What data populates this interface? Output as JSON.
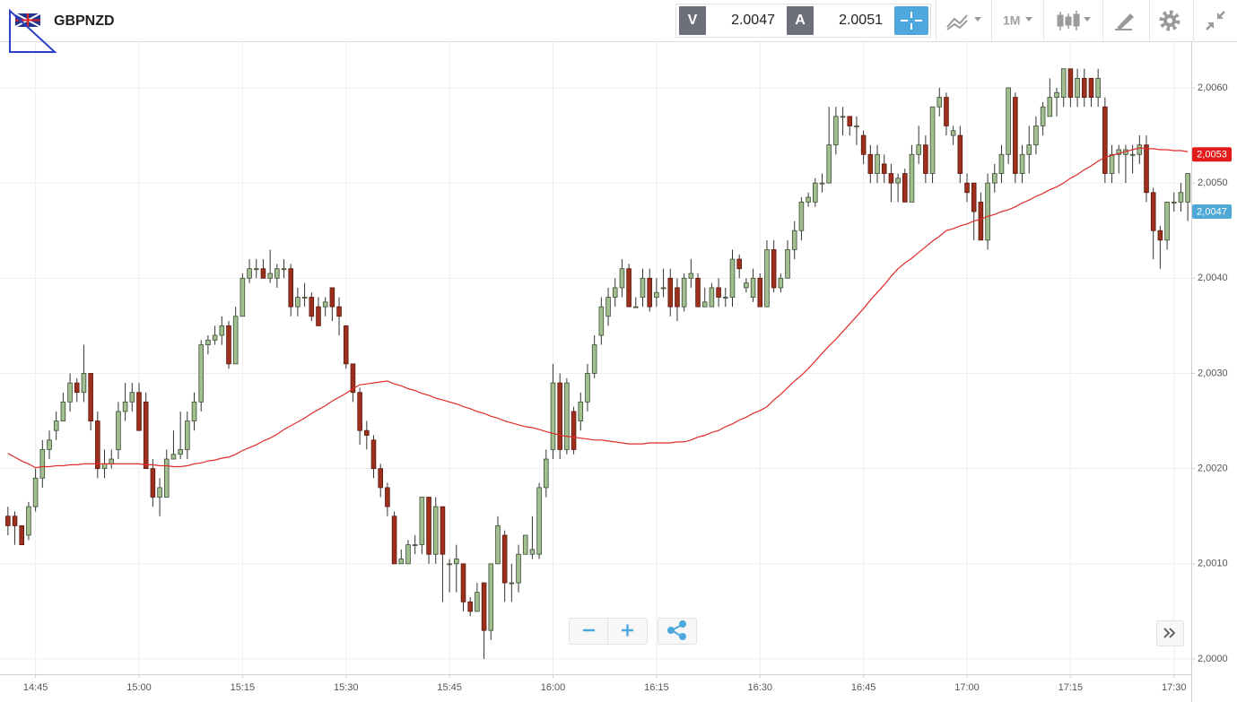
{
  "header": {
    "symbol": "GBPNZD",
    "bid_label": "V",
    "bid": "2.0047",
    "ask_label": "A",
    "ask": "2.0051",
    "timeframe": "1M"
  },
  "chart_data": {
    "type": "candlestick",
    "categories": [
      null,
      null,
      null,
      null,
      "14:45",
      null,
      null,
      null,
      null,
      null,
      null,
      null,
      null,
      null,
      null,
      null,
      null,
      null,
      null,
      "15:00",
      null,
      null,
      null,
      null,
      null,
      null,
      null,
      null,
      null,
      null,
      null,
      null,
      null,
      null,
      "15:15",
      null,
      null,
      null,
      null,
      null,
      null,
      null,
      null,
      null,
      null,
      null,
      null,
      null,
      null,
      "15:30",
      null,
      null,
      null,
      null,
      null,
      null,
      null,
      null,
      null,
      null,
      null,
      null,
      null,
      null,
      "15:45",
      null,
      null,
      null,
      null,
      null,
      null,
      null,
      null,
      null,
      null,
      null,
      null,
      null,
      null,
      "16:00",
      null,
      null,
      null,
      null,
      null,
      null,
      null,
      null,
      null,
      null,
      null,
      null,
      null,
      null,
      "16:15",
      null,
      null,
      null,
      null,
      null,
      null,
      null,
      null,
      null,
      null,
      null,
      null,
      null,
      null,
      "16:30",
      null,
      null,
      null,
      null,
      null,
      null,
      null,
      null,
      null,
      null,
      null,
      null,
      null,
      null,
      "16:45",
      null,
      null,
      null,
      null,
      null,
      null,
      null,
      null,
      null,
      null,
      null,
      null,
      null,
      null,
      "17:00",
      null,
      null,
      null,
      null,
      null,
      null,
      null,
      null,
      null,
      null,
      null,
      null,
      null,
      null,
      "17:15",
      null,
      null,
      null,
      null,
      null,
      null,
      null,
      null,
      null,
      null,
      null,
      null,
      null,
      null,
      "17:30",
      null,
      null
    ],
    "open": [
      2.0015,
      2.0015,
      2.0014,
      2.0013,
      2.0016,
      2.0019,
      2.0022,
      2.0024,
      2.0025,
      2.0027,
      2.0029,
      2.0028,
      2.003,
      2.0025,
      2.002,
      2.00205,
      2.0022,
      2.0026,
      2.0027,
      2.0028,
      2.0027,
      2.002,
      2.0017,
      2.0017,
      2.0021,
      2.00215,
      2.0022,
      2.0025,
      2.0027,
      2.0033,
      2.00335,
      2.0034,
      2.0035,
      2.0031,
      2.0036,
      2.004,
      2.0041,
      2.0041,
      2.004,
      2.004,
      2.0041,
      2.0041,
      2.0037,
      2.0038,
      2.0038,
      2.0037,
      2.0037,
      2.0039,
      2.0037,
      2.0035,
      2.0031,
      2.0028,
      2.0024,
      2.0023,
      2.002,
      2.0018,
      2.0015,
      2.001,
      2.001,
      2.0012,
      2.0012,
      2.0017,
      2.0011,
      2.0016,
      2.001,
      2.001,
      2.001,
      2.0006,
      2.0005,
      2.0008,
      2.0003,
      2.001,
      2.0013,
      2.0008,
      2.0008,
      2.0011,
      2.0011,
      2.0011,
      2.0018,
      2.0022,
      2.0029,
      2.0022,
      2.0026,
      2.0025,
      2.0027,
      2.003,
      2.0034,
      2.0036,
      2.0038,
      2.0039,
      2.0041,
      2.0037,
      2.0038,
      2.004,
      2.0038,
      2.0039,
      2.004,
      2.0039,
      2.0037,
      2.004,
      2.004,
      2.0037,
      2.0037,
      2.0039,
      2.0038,
      2.0038,
      2.0042,
      2.0039,
      2.0038,
      2.004,
      2.0037,
      2.0043,
      2.0039,
      2.004,
      2.0043,
      2.0045,
      2.0048,
      2.0048,
      2.005,
      2.005,
      2.0054,
      2.0057,
      2.0057,
      2.0056,
      2.0055,
      2.0053,
      2.0051,
      2.0052,
      2.0051,
      2.005,
      2.0051,
      2.0048,
      2.0053,
      2.0054,
      2.0051,
      2.0058,
      2.0059,
      2.0055,
      2.0055,
      2.005,
      2.005,
      2.0048,
      2.0044,
      2.005,
      2.0051,
      2.0053,
      2.0059,
      2.0051,
      2.0053,
      2.0054,
      2.0056,
      2.0057,
      2.0059,
      2.0059,
      2.0062,
      2.0059,
      2.0061,
      2.0061,
      2.0059,
      2.0058,
      2.0051,
      2.0053,
      2.0053,
      2.0053,
      2.0053,
      2.0054,
      2.0049,
      2.0045,
      2.0044,
      2.0048,
      2.0048,
      2.0048
    ],
    "high": [
      2.0016,
      2.00155,
      2.0014,
      2.00165,
      2.002,
      2.0023,
      2.0024,
      2.0026,
      2.0028,
      2.003,
      2.00295,
      2.0033,
      2.003,
      2.0026,
      2.0022,
      2.0022,
      2.0027,
      2.0029,
      2.0029,
      2.0029,
      2.0028,
      2.0021,
      2.0019,
      2.0022,
      2.0024,
      2.0026,
      2.0026,
      2.0028,
      2.00335,
      2.0034,
      2.0035,
      2.0036,
      2.00355,
      2.0037,
      2.00405,
      2.0042,
      2.0042,
      2.0042,
      2.0043,
      2.00415,
      2.0042,
      2.00415,
      2.0039,
      2.00395,
      2.00385,
      2.0038,
      2.0038,
      2.0039,
      2.0038,
      2.0035,
      2.0031,
      2.00285,
      2.0025,
      2.00235,
      2.00205,
      2.00185,
      2.00155,
      2.00115,
      2.00125,
      2.0013,
      2.0017,
      2.0017,
      2.0017,
      2.0016,
      2.00105,
      2.0012,
      2.001,
      2.00065,
      2.0008,
      2.0008,
      2.001,
      2.0015,
      2.00135,
      2.001,
      2.0012,
      2.0013,
      2.0015,
      2.00185,
      2.0022,
      2.0031,
      2.003,
      2.00295,
      2.00265,
      2.0028,
      2.0031,
      2.0034,
      2.0038,
      2.0039,
      2.004,
      2.0042,
      2.00415,
      2.0038,
      2.0041,
      2.0041,
      2.004,
      2.0041,
      2.0041,
      2.004,
      2.00405,
      2.0042,
      2.00405,
      2.0039,
      2.00395,
      2.004,
      2.0039,
      2.0043,
      2.00425,
      2.004,
      2.0041,
      2.00405,
      2.0044,
      2.0044,
      2.00405,
      2.0044,
      2.0046,
      2.00485,
      2.0049,
      2.00505,
      2.0051,
      2.0058,
      2.0058,
      2.0058,
      2.0057,
      2.0057,
      2.00555,
      2.0054,
      2.0054,
      2.0053,
      2.0052,
      2.0051,
      2.00515,
      2.0054,
      2.0056,
      2.0055,
      2.0058,
      2.006,
      2.00595,
      2.0056,
      2.0056,
      2.0051,
      2.005,
      2.0049,
      2.0051,
      2.0052,
      2.0054,
      2.006,
      2.00595,
      2.0054,
      2.0056,
      2.0057,
      2.00585,
      2.0061,
      2.006,
      2.0062,
      2.0062,
      2.0062,
      2.0062,
      2.0061,
      2.0062,
      2.0059,
      2.0054,
      2.0054,
      2.0054,
      2.0054,
      2.0055,
      2.0055,
      2.00495,
      2.00455,
      2.0048,
      2.0049,
      2.005,
      2.0051
    ],
    "low": [
      2.0013,
      2.0012,
      2.0012,
      2.00125,
      2.00155,
      2.0018,
      2.0021,
      2.0023,
      2.0025,
      2.0026,
      2.0027,
      2.0027,
      2.0024,
      2.0019,
      2.0019,
      2.002,
      2.0021,
      2.0025,
      2.0026,
      2.0024,
      2.002,
      2.0016,
      2.0015,
      2.0017,
      2.0021,
      2.0021,
      2.0021,
      2.0024,
      2.0026,
      2.0032,
      2.0033,
      2.0033,
      2.00305,
      2.0031,
      2.0036,
      2.00395,
      2.004,
      2.004,
      2.00395,
      2.0039,
      2.004,
      2.0036,
      2.0036,
      2.0037,
      2.00355,
      2.0035,
      2.0036,
      2.00355,
      2.0034,
      2.00305,
      2.0027,
      2.00225,
      2.0022,
      2.0019,
      2.0017,
      2.0015,
      2.001,
      2.001,
      2.001,
      2.0011,
      2.0011,
      2.001,
      2.001,
      2.0006,
      2.0007,
      2.0007,
      2.0005,
      2.00045,
      2.0005,
      2.0,
      2.0002,
      2.001,
      2.0006,
      2.0006,
      2.0007,
      2.0011,
      2.00105,
      2.00105,
      2.0017,
      2.0021,
      2.0021,
      2.00215,
      2.00215,
      2.0024,
      2.0026,
      2.00295,
      2.0033,
      2.0035,
      2.0037,
      2.0038,
      2.0037,
      2.0037,
      2.0037,
      2.00365,
      2.0037,
      2.0038,
      2.0036,
      2.00355,
      2.00365,
      2.0039,
      2.0037,
      2.0037,
      2.0037,
      2.0037,
      2.0037,
      2.0037,
      2.004,
      2.00385,
      2.00375,
      2.0037,
      2.0037,
      2.00385,
      2.00385,
      2.004,
      2.0042,
      2.0044,
      2.00475,
      2.00475,
      2.0049,
      2.005,
      2.0053,
      2.0055,
      2.0055,
      2.0054,
      2.0052,
      2.005,
      2.005,
      2.005,
      2.0048,
      2.0048,
      2.0048,
      2.0048,
      2.0052,
      2.005,
      2.005,
      2.0057,
      2.0055,
      2.0054,
      2.005,
      2.0048,
      2.0044,
      2.0044,
      2.0043,
      2.0049,
      2.005,
      2.0052,
      2.005,
      2.005,
      2.0051,
      2.0053,
      2.0055,
      2.0057,
      2.0057,
      2.0058,
      2.0058,
      2.0058,
      2.0058,
      2.0058,
      2.0058,
      2.005,
      2.005,
      2.0051,
      2.005,
      2.0051,
      2.0052,
      2.0048,
      2.0042,
      2.0041,
      2.0043,
      2.0047,
      2.0047,
      2.0046
    ],
    "close": [
      2.0014,
      2.0014,
      2.0012,
      2.0016,
      2.0019,
      2.0022,
      2.0023,
      2.0025,
      2.0027,
      2.0029,
      2.0028,
      2.003,
      2.0025,
      2.002,
      2.00205,
      2.0021,
      2.0026,
      2.0027,
      2.0028,
      2.0024,
      2.002,
      2.0017,
      2.0018,
      2.0021,
      2.00215,
      2.0022,
      2.0025,
      2.0027,
      2.0033,
      2.00335,
      2.0034,
      2.0035,
      2.0031,
      2.0036,
      2.004,
      2.0041,
      2.0041,
      2.004,
      2.00405,
      2.0041,
      2.0041,
      2.0037,
      2.0038,
      2.0038,
      2.0036,
      2.0035,
      2.00375,
      2.0037,
      2.0036,
      2.0031,
      2.0028,
      2.0024,
      2.00235,
      2.002,
      2.0018,
      2.0016,
      2.001,
      2.00105,
      2.0012,
      2.0012,
      2.0017,
      2.0011,
      2.0016,
      2.0011,
      2.001,
      2.00105,
      2.0006,
      2.0005,
      2.0007,
      2.0003,
      2.001,
      2.0014,
      2.0008,
      2.0008,
      2.0011,
      2.0013,
      2.00115,
      2.0018,
      2.0021,
      2.0029,
      2.0022,
      2.0029,
      2.0022,
      2.0027,
      2.003,
      2.0033,
      2.0037,
      2.0038,
      2.0039,
      2.0041,
      2.0037,
      2.0037,
      2.004,
      2.0037,
      2.00385,
      2.0039,
      2.0037,
      2.0037,
      2.004,
      2.00405,
      2.0037,
      2.00375,
      2.0039,
      2.0038,
      2.0038,
      2.0042,
      2.0041,
      2.00395,
      2.004,
      2.0037,
      2.0043,
      2.0039,
      2.004,
      2.0043,
      2.0045,
      2.0048,
      2.00485,
      2.005,
      2.005,
      2.0054,
      2.0057,
      2.0057,
      2.0056,
      2.0056,
      2.0053,
      2.0051,
      2.0053,
      2.0051,
      2.005,
      2.00505,
      2.0048,
      2.0053,
      2.0054,
      2.0051,
      2.0058,
      2.0059,
      2.0056,
      2.00555,
      2.0051,
      2.0049,
      2.0047,
      2.0044,
      2.005,
      2.0051,
      2.0053,
      2.006,
      2.0051,
      2.0053,
      2.0054,
      2.0056,
      2.0058,
      2.0059,
      2.00595,
      2.0062,
      2.0059,
      2.0061,
      2.0059,
      2.0059,
      2.0061,
      2.0051,
      2.0053,
      2.00535,
      2.00535,
      2.0053,
      2.0054,
      2.0049,
      2.0045,
      2.0044,
      2.0048,
      2.0048,
      2.0049,
      2.0051
    ],
    "up_color": "#a2c08f",
    "down_color": "#9e2f1d",
    "line": {
      "color": "#e02b2b",
      "values": [
        2.00216,
        2.00212,
        2.00208,
        2.00205,
        2.00201,
        2.00202,
        2.00202,
        2.00203,
        2.00203,
        2.00204,
        2.00204,
        2.00205,
        2.00205,
        2.00205,
        2.00205,
        2.00205,
        2.00205,
        2.00205,
        2.00205,
        2.00205,
        2.00204,
        2.00204,
        2.00203,
        2.00203,
        2.00202,
        2.00202,
        2.00203,
        2.00205,
        2.00206,
        2.00208,
        2.00209,
        2.00211,
        2.00212,
        2.00215,
        2.00219,
        2.00222,
        2.00225,
        2.00229,
        2.00232,
        2.00236,
        2.00241,
        2.00245,
        2.00249,
        2.00253,
        2.00258,
        2.00262,
        2.00266,
        2.00271,
        2.00275,
        2.00279,
        2.00284,
        2.00288,
        2.00289,
        2.0029,
        2.00291,
        2.00292,
        2.00289,
        2.00287,
        2.00284,
        2.00282,
        2.00279,
        2.00277,
        2.00274,
        2.00272,
        2.0027,
        2.00268,
        2.00265,
        2.00263,
        2.0026,
        2.00258,
        2.00255,
        2.00253,
        2.0025,
        2.00248,
        2.00246,
        2.00244,
        2.00243,
        2.00241,
        2.00239,
        2.00237,
        2.00235,
        2.00234,
        2.00233,
        2.00232,
        2.00231,
        2.0023,
        2.0023,
        2.00229,
        2.00228,
        2.00227,
        2.00226,
        2.00226,
        2.00226,
        2.00227,
        2.00227,
        2.00227,
        2.00227,
        2.00228,
        2.00228,
        2.0023,
        2.00233,
        2.00235,
        2.00238,
        2.0024,
        2.00244,
        2.00247,
        2.00251,
        2.00254,
        2.00258,
        2.00261,
        2.00265,
        2.00272,
        2.00278,
        2.00285,
        2.00292,
        2.00298,
        2.00305,
        2.00313,
        2.00321,
        2.00329,
        2.00336,
        2.00344,
        2.00352,
        2.0036,
        2.00368,
        2.00377,
        2.00385,
        2.00393,
        2.00402,
        2.0041,
        2.00416,
        2.00421,
        2.00427,
        2.00433,
        2.00439,
        2.00444,
        2.0045,
        2.00452,
        2.00455,
        2.00457,
        2.0046,
        2.00462,
        2.00465,
        2.00467,
        2.0047,
        2.00472,
        2.00475,
        2.00479,
        2.00482,
        2.00486,
        2.00489,
        2.00493,
        2.00496,
        2.005,
        2.00505,
        2.00509,
        2.00514,
        2.00518,
        2.00523,
        2.00527,
        2.00529,
        2.00531,
        2.00533,
        2.00535,
        2.00537,
        2.00536,
        2.00536,
        2.00535,
        2.00535,
        2.00534,
        2.00534,
        2.00533
      ]
    },
    "price_markers": [
      {
        "value": 2.0053,
        "label": "2,0053",
        "color": "#e31b1b"
      },
      {
        "value": 2.0047,
        "label": "2,0047",
        "color": "#4ea8d8"
      }
    ],
    "ylim": [
      1.99984,
      2.00648
    ],
    "yticks": [
      {
        "value": 2.0,
        "label": "2,0000"
      },
      {
        "value": 2.001,
        "label": "2,0010"
      },
      {
        "value": 2.002,
        "label": "2,0020"
      },
      {
        "value": 2.003,
        "label": "2,0030"
      },
      {
        "value": 2.004,
        "label": "2,0040"
      },
      {
        "value": 2.005,
        "label": "2,0050"
      },
      {
        "value": 2.006,
        "label": "2,0060"
      }
    ],
    "grid": true
  }
}
